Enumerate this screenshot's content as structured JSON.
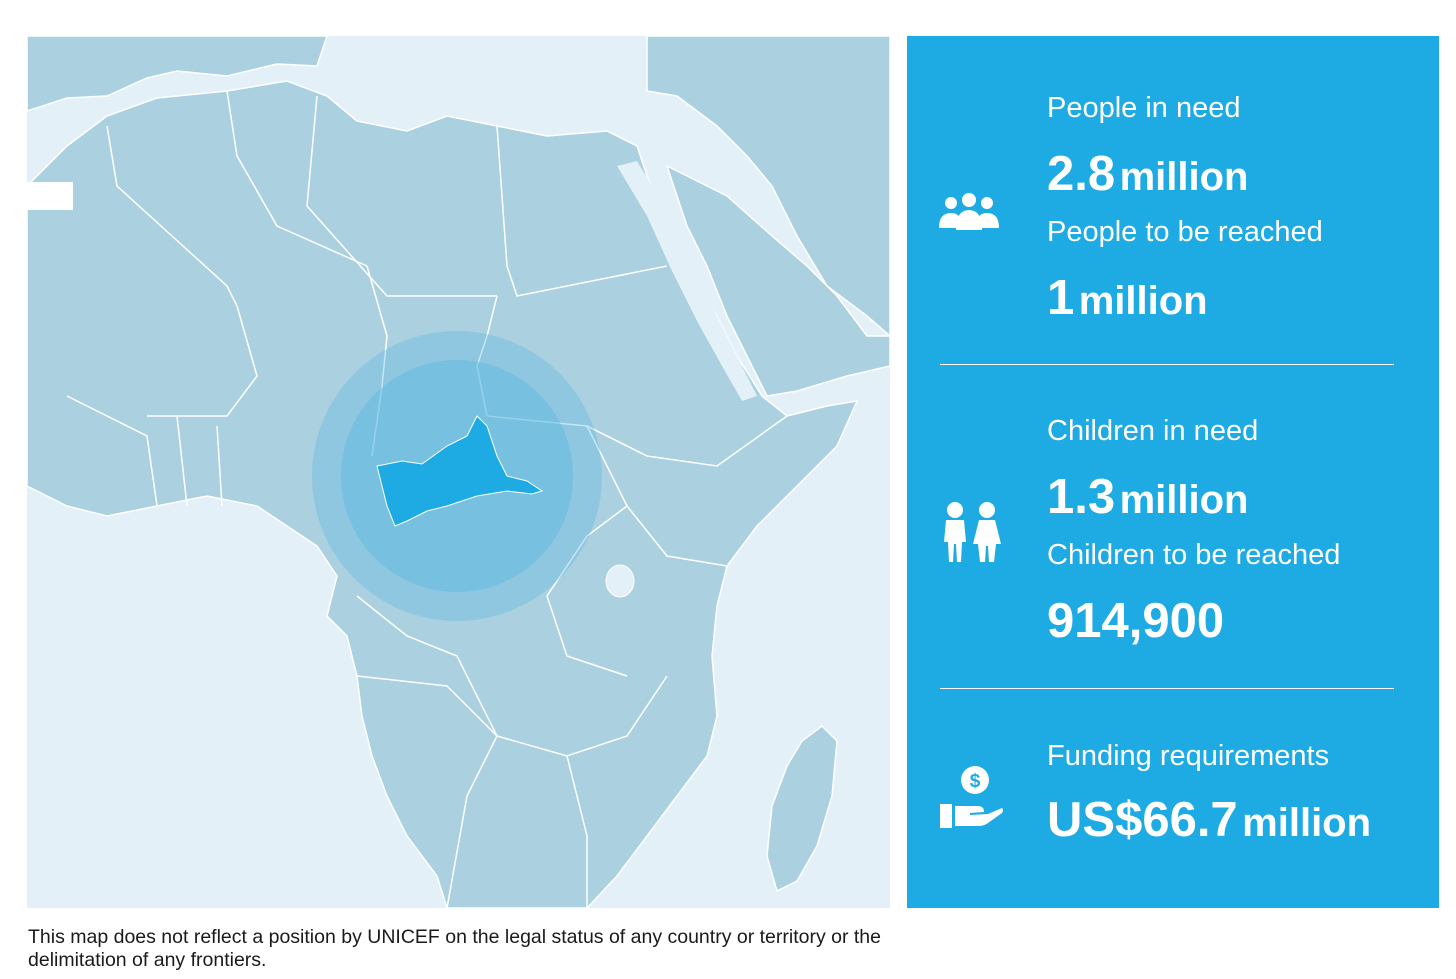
{
  "map": {
    "highlighted_country": "Central African Republic",
    "colors": {
      "water": "#e3f0f8",
      "land": "#abd0df",
      "border": "#ffffff",
      "highlight": "#1eaae2",
      "halo": "#5ab8e0"
    }
  },
  "panel": {
    "background": "#1eaae2",
    "people_in_need": {
      "label": "People in need",
      "number": "2.8",
      "unit": "million"
    },
    "people_reached": {
      "label": "People to be reached",
      "number": "1",
      "unit": "million"
    },
    "children_in_need": {
      "label": "Children in need",
      "number": "1.3",
      "unit": "million"
    },
    "children_reached": {
      "label": "Children to be reached",
      "number": "914,900"
    },
    "funding": {
      "label": "Funding requirements",
      "number": "US$66.7",
      "unit": "million"
    },
    "icons": [
      "people-group-icon",
      "children-icon",
      "funding-hand-dollar-icon"
    ]
  },
  "disclaimer": "This map does not reflect a position by UNICEF on the legal status of any country or territory or the delimitation of any frontiers."
}
